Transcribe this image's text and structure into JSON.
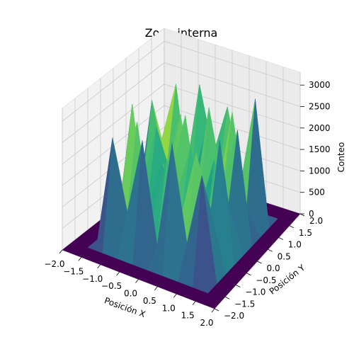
{
  "chart_data": {
    "type": "surface3d",
    "title": "Zona interna",
    "xlabel": "Posición X",
    "ylabel": "Posición Y",
    "zlabel": "Conteo",
    "xlim": [
      -2.0,
      2.0
    ],
    "ylim": [
      -2.0,
      2.0
    ],
    "zlim": [
      0,
      3000
    ],
    "x_ticks": [
      "−2.0",
      "−1.5",
      "−1.0",
      "−0.5",
      "0.0",
      "0.5",
      "1.0",
      "1.5",
      "2.0"
    ],
    "y_ticks": [
      "−2.0",
      "−1.5",
      "−1.0",
      "−0.5",
      "0.0",
      "0.5",
      "1.0",
      "1.5",
      "2.0"
    ],
    "z_ticks": [
      "0",
      "500",
      "1000",
      "1500",
      "2000",
      "2500",
      "3000"
    ],
    "grid": true,
    "colormap": "viridis",
    "x": [
      -2.0,
      -1.6,
      -1.2,
      -0.8,
      -0.4,
      0.0,
      0.4,
      0.8,
      1.2,
      1.6,
      2.0
    ],
    "y": [
      -2.0,
      -1.6,
      -1.2,
      -0.8,
      -0.4,
      0.0,
      0.4,
      0.8,
      1.2,
      1.6,
      2.0
    ],
    "z": [
      [
        0,
        0,
        0,
        0,
        0,
        0,
        0,
        0,
        0,
        0,
        0
      ],
      [
        0,
        0,
        0,
        0,
        0,
        0,
        0,
        0,
        0,
        0,
        0
      ],
      [
        0,
        0,
        2500,
        900,
        2700,
        400,
        2900,
        700,
        2400,
        0,
        0
      ],
      [
        0,
        0,
        1200,
        2800,
        600,
        2200,
        1000,
        2600,
        1400,
        0,
        0
      ],
      [
        0,
        0,
        2900,
        500,
        1800,
        1100,
        2400,
        300,
        2800,
        0,
        0
      ],
      [
        0,
        0,
        800,
        2300,
        1300,
        2800,
        700,
        2000,
        1100,
        0,
        0
      ],
      [
        0,
        0,
        2600,
        1000,
        2500,
        600,
        2900,
        1200,
        2600,
        0,
        0
      ],
      [
        0,
        0,
        1500,
        2900,
        400,
        1900,
        800,
        2700,
        500,
        0,
        0
      ],
      [
        0,
        0,
        2200,
        600,
        2800,
        1300,
        2500,
        900,
        2900,
        0,
        0
      ],
      [
        0,
        0,
        0,
        0,
        0,
        0,
        0,
        0,
        0,
        0,
        0
      ],
      [
        0,
        0,
        0,
        0,
        0,
        0,
        0,
        0,
        0,
        0,
        0
      ]
    ]
  }
}
